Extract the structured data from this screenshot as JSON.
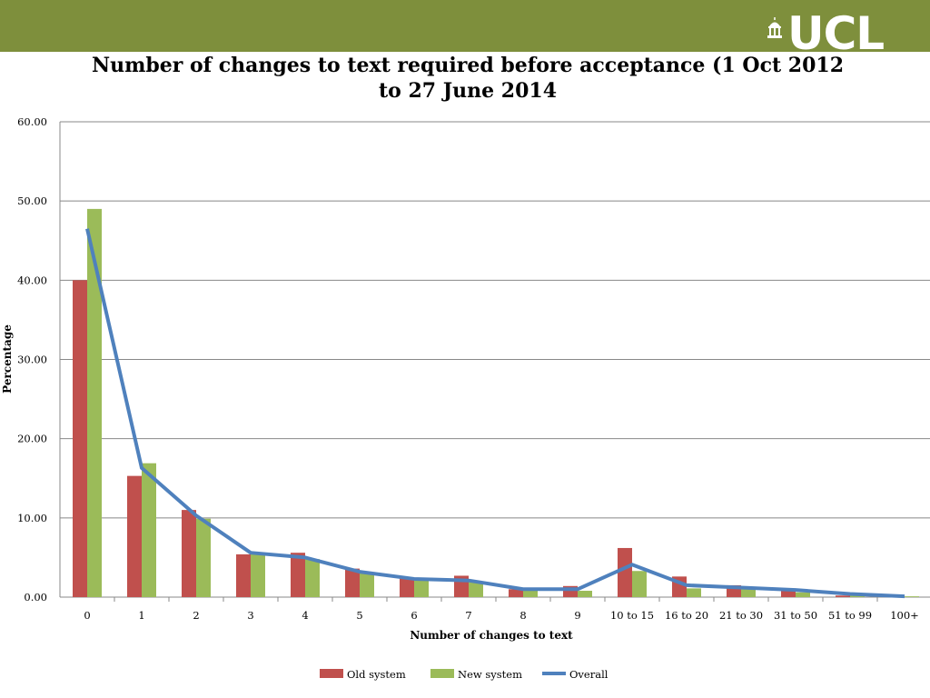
{
  "logo": {
    "text": "UCL",
    "icon": "building-dome-icon"
  },
  "colors": {
    "header_band": "#7e8f3c",
    "old_system": "#c0504d",
    "new_system": "#9bbb59",
    "overall": "#4f81bd",
    "gridline": "#888888"
  },
  "chart_data": {
    "type": "bar",
    "title": "Number of changes to text required before acceptance (1 Oct 2012 to 27 June 2014",
    "xlabel": "Number of changes to text",
    "ylabel": "Percentage",
    "ylim": [
      0,
      60
    ],
    "yticks": [
      "0.00",
      "10.00",
      "20.00",
      "30.00",
      "40.00",
      "50.00",
      "60.00"
    ],
    "ytick_values": [
      0,
      10,
      20,
      30,
      40,
      50,
      60
    ],
    "grid": true,
    "legend_position": "bottom",
    "categories": [
      "0",
      "1",
      "2",
      "3",
      "4",
      "5",
      "6",
      "7",
      "8",
      "9",
      "10 to 15",
      "16 to 20",
      "21 to 30",
      "31 to 50",
      "51 to 99",
      "100+"
    ],
    "series": [
      {
        "name": "Old system",
        "kind": "bar",
        "color": "#c0504d",
        "values": [
          40.0,
          15.3,
          11.0,
          5.4,
          5.6,
          3.6,
          2.4,
          2.7,
          1.0,
          1.4,
          6.2,
          2.6,
          1.5,
          1.1,
          0.2,
          0.1
        ]
      },
      {
        "name": "New system",
        "kind": "bar",
        "color": "#9bbb59",
        "values": [
          49.0,
          16.9,
          9.9,
          5.6,
          4.8,
          3.1,
          2.2,
          2.0,
          1.0,
          0.8,
          3.3,
          1.1,
          1.0,
          0.6,
          0.2,
          0.1
        ]
      },
      {
        "name": "Overall",
        "kind": "line",
        "color": "#4f81bd",
        "values": [
          46.5,
          16.3,
          10.3,
          5.6,
          5.0,
          3.2,
          2.3,
          2.1,
          1.0,
          1.0,
          4.1,
          1.5,
          1.2,
          0.9,
          0.4,
          0.1
        ]
      }
    ]
  }
}
